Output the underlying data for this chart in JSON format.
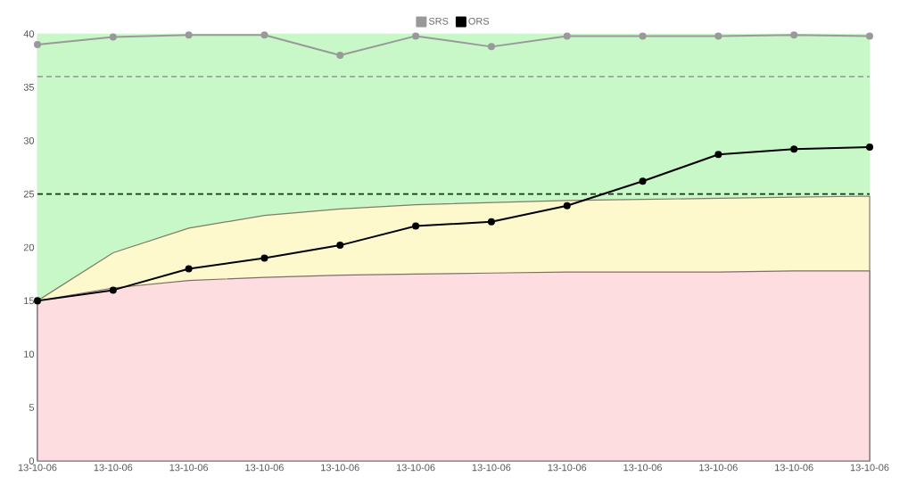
{
  "chart_data": {
    "type": "line",
    "categories": [
      "13-10-06",
      "13-10-06",
      "13-10-06",
      "13-10-06",
      "13-10-06",
      "13-10-06",
      "13-10-06",
      "13-10-06",
      "13-10-06",
      "13-10-06",
      "13-10-06",
      "13-10-06"
    ],
    "series": [
      {
        "type": "area",
        "marker": "none",
        "color": "#fdf9cc",
        "values": [
          15,
          19.5,
          21.8,
          23,
          23.6,
          24.0,
          24.2,
          24.4,
          24.5,
          24.6,
          24.7,
          24.8
        ]
      },
      {
        "type": "area",
        "marker": "none",
        "color": "#fddde0",
        "values": [
          15,
          16.2,
          16.9,
          17.2,
          17.4,
          17.5,
          17.6,
          17.7,
          17.7,
          17.7,
          17.8,
          17.8
        ]
      },
      {
        "name": "SRS",
        "color": "#999999",
        "values": [
          39.0,
          39.7,
          39.9,
          39.9,
          38.0,
          39.8,
          38.8,
          39.8,
          39.8,
          39.8,
          39.9,
          39.8
        ]
      },
      {
        "name": "ORS",
        "color": "#000000",
        "values": [
          15,
          16,
          18,
          19,
          20.2,
          22,
          22.4,
          23.9,
          26.2,
          28.7,
          29.2,
          29.4
        ]
      }
    ],
    "ylim": [
      0,
      40
    ],
    "yticks": [
      0,
      5,
      10,
      15,
      20,
      25,
      30,
      35,
      40
    ],
    "bands": [
      {
        "axis": "y",
        "from": 15,
        "to": 40,
        "color": "#c8f8c8"
      }
    ],
    "ref_lines": [
      {
        "axis": "y",
        "value": 36,
        "color": "#a0a0a0",
        "line_style": "dashed"
      },
      {
        "axis": "y",
        "value": 25,
        "color": "#1a301a",
        "line_style": "dashed"
      }
    ],
    "grid": true,
    "legend": "top",
    "marker": "circle"
  }
}
